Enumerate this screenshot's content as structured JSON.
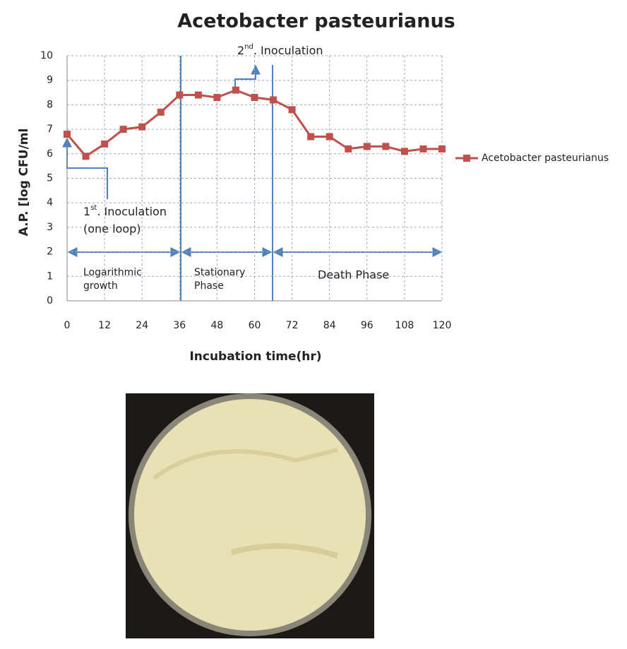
{
  "chart_data": {
    "type": "line",
    "title": "Acetobacter pasteurianus",
    "x_label": "Incubation time(hr)",
    "y_label": "A.P. [log CFU/ml",
    "x": [
      0,
      6,
      12,
      18,
      24,
      30,
      36,
      42,
      48,
      54,
      60,
      66,
      72,
      78,
      84,
      90,
      96,
      102,
      108,
      114,
      120
    ],
    "series": [
      {
        "name": "Acetobacter pasteurianus",
        "color": "#c0504d",
        "values": [
          6.8,
          5.9,
          6.4,
          7.0,
          7.1,
          7.7,
          8.4,
          8.4,
          8.3,
          8.6,
          8.3,
          8.2,
          7.8,
          6.7,
          6.7,
          6.2,
          6.3,
          6.3,
          6.1,
          6.2,
          6.2
        ]
      }
    ],
    "xlim": [
      0,
      120
    ],
    "xticks": [
      0,
      12,
      24,
      36,
      48,
      60,
      72,
      84,
      96,
      108,
      120
    ],
    "ylim": [
      0,
      10
    ],
    "yticks": [
      0,
      1,
      2,
      3,
      4,
      5,
      6,
      7,
      8,
      9,
      10
    ],
    "grid": true,
    "legend": "right",
    "annotations": {
      "first_inoculation": [
        "1",
        "st",
        ". Inoculation"
      ],
      "first_inoculation_note": "(one loop)",
      "second_inoculation": [
        "2",
        "nd",
        ". Inoculation"
      ],
      "phases": [
        [
          "Logarithmic",
          "growth"
        ],
        [
          "Stationary",
          "Phase"
        ],
        [
          "Death Phase"
        ]
      ]
    }
  }
}
